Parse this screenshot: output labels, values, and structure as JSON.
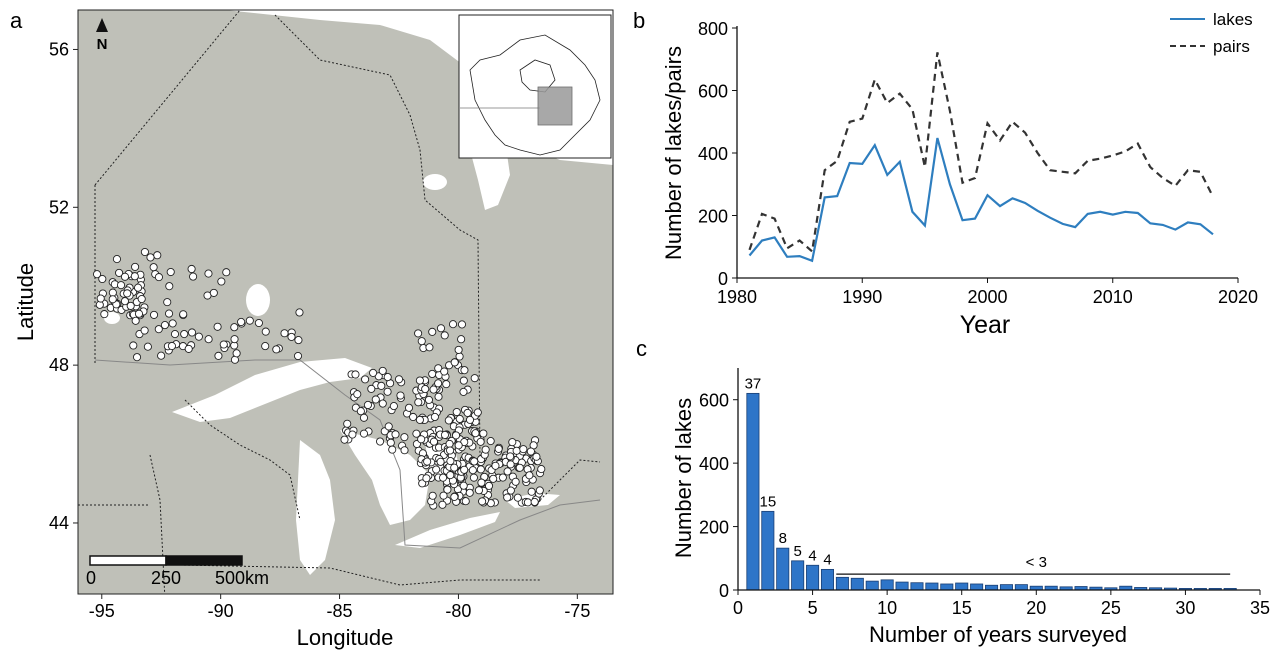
{
  "panels": {
    "a": "a",
    "b": "b",
    "c": "c"
  },
  "chart_data": [
    {
      "type": "scatter",
      "panel": "a",
      "description_kind": "map",
      "xlabel": "Longitude",
      "ylabel": "Latitude",
      "xlim": [
        -96,
        -73.5
      ],
      "ylim": [
        42.2,
        57
      ],
      "xticks": [
        -95,
        -90,
        -85,
        -80,
        -75
      ],
      "yticks": [
        44,
        48,
        52,
        56
      ],
      "north_arrow_label": "N",
      "scale_bar": {
        "labels": [
          "0",
          "250",
          "500km"
        ]
      },
      "colors": {
        "land": "#bfc0b8",
        "water": "#ffffff",
        "points": "#ffffff",
        "point_edge": "#222222"
      }
    },
    {
      "type": "line",
      "panel": "b",
      "xlabel": "Year",
      "ylabel": "Number of lakes/pairs",
      "xlim": [
        1980,
        2020
      ],
      "ylim": [
        0,
        800
      ],
      "xticks": [
        1980,
        1990,
        2000,
        2010,
        2020
      ],
      "yticks": [
        0,
        200,
        400,
        600,
        800
      ],
      "legend": "top-right",
      "x": [
        1981,
        1982,
        1983,
        1984,
        1985,
        1986,
        1987,
        1988,
        1989,
        1990,
        1991,
        1992,
        1993,
        1994,
        1995,
        1996,
        1997,
        1998,
        1999,
        2000,
        2001,
        2002,
        2003,
        2004,
        2005,
        2006,
        2007,
        2008,
        2009,
        2010,
        2011,
        2012,
        2013,
        2014,
        2015,
        2016,
        2017,
        2018
      ],
      "series": [
        {
          "name": "lakes",
          "color": "#2e7ebf",
          "dash": "solid",
          "values": [
            72,
            120,
            130,
            68,
            70,
            55,
            258,
            262,
            368,
            365,
            425,
            330,
            372,
            212,
            168,
            448,
            300,
            185,
            190,
            265,
            230,
            255,
            240,
            215,
            193,
            173,
            163,
            205,
            212,
            203,
            212,
            208,
            175,
            170,
            155,
            178,
            172,
            140
          ]
        },
        {
          "name": "pairs",
          "color": "#333333",
          "dash": "dashed",
          "values": [
            90,
            205,
            190,
            95,
            120,
            85,
            345,
            375,
            500,
            510,
            635,
            560,
            590,
            540,
            355,
            722,
            535,
            305,
            320,
            495,
            440,
            500,
            465,
            400,
            345,
            340,
            335,
            375,
            382,
            392,
            405,
            430,
            355,
            320,
            295,
            345,
            340,
            260
          ]
        }
      ]
    },
    {
      "type": "bar",
      "panel": "c",
      "xlabel": "Number of years surveyed",
      "ylabel": "Number of lakes",
      "xlim": [
        0,
        35
      ],
      "ylim": [
        0,
        700
      ],
      "xticks": [
        0,
        5,
        10,
        15,
        20,
        25,
        30,
        35
      ],
      "yticks": [
        0,
        200,
        400,
        600
      ],
      "bar_color": "#2e75c8",
      "categories": [
        1,
        2,
        3,
        4,
        5,
        6,
        7,
        8,
        9,
        10,
        11,
        12,
        13,
        14,
        15,
        16,
        17,
        18,
        19,
        20,
        21,
        22,
        23,
        24,
        25,
        26,
        27,
        28,
        29,
        30,
        31,
        32,
        33
      ],
      "values": [
        620,
        248,
        132,
        92,
        78,
        65,
        40,
        37,
        28,
        32,
        25,
        23,
        22,
        19,
        22,
        19,
        15,
        17,
        17,
        12,
        12,
        10,
        11,
        9,
        7,
        12,
        8,
        7,
        6,
        5,
        5,
        5,
        5
      ],
      "annotations": [
        {
          "x": 1,
          "text": "37"
        },
        {
          "x": 2,
          "text": "15"
        },
        {
          "x": 3,
          "text": "8"
        },
        {
          "x": 4,
          "text": "5"
        },
        {
          "x": 5,
          "text": "4"
        },
        {
          "x": 6,
          "text": "4"
        }
      ],
      "bracket": {
        "x_from": 7,
        "x_to": 33,
        "y": 50,
        "text": "< 3"
      }
    }
  ]
}
